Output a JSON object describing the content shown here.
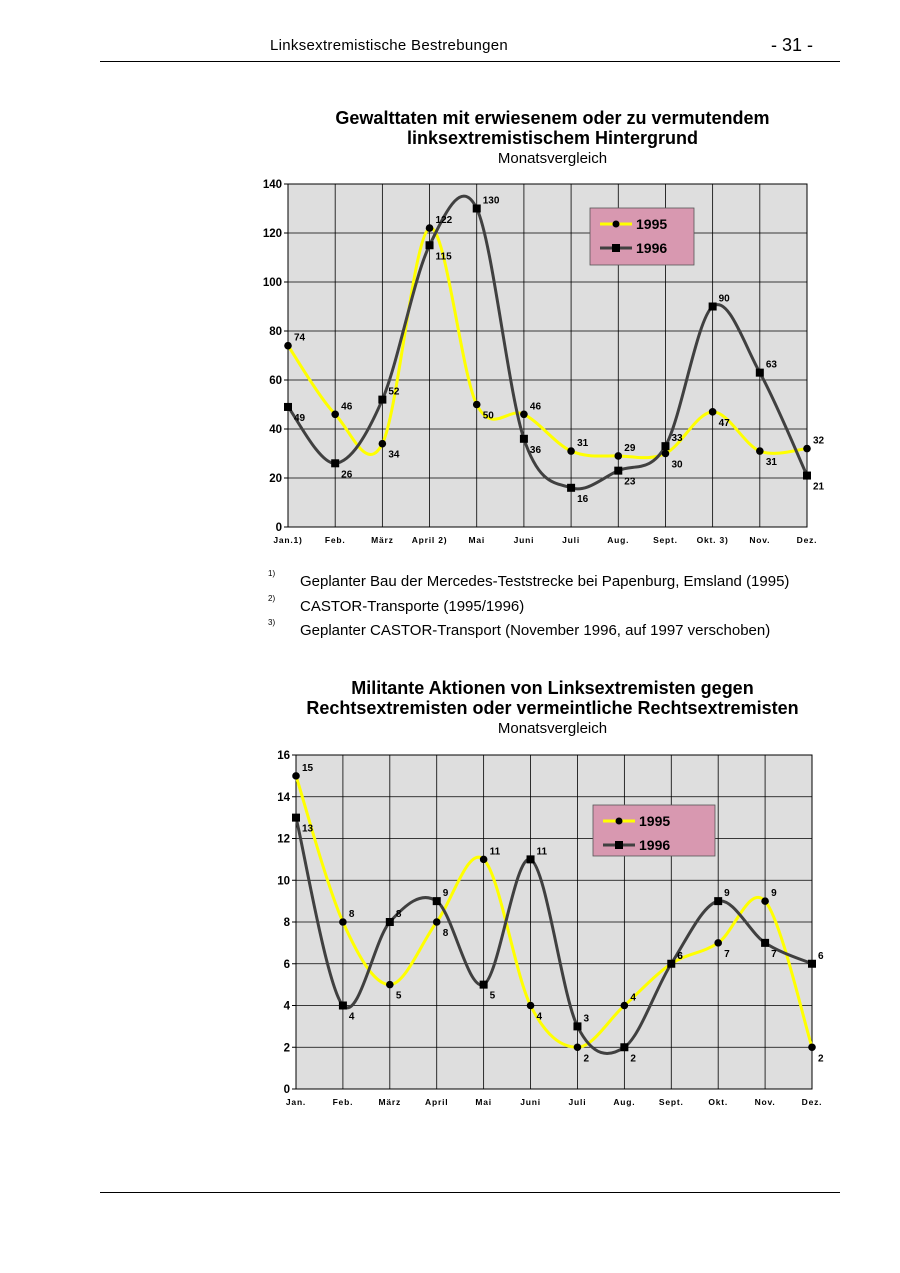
{
  "header": {
    "title": "Linksextremistische Bestrebungen",
    "page_number": "- 31 -"
  },
  "footnotes": [
    {
      "mark": "1)",
      "text": "Geplanter Bau der Mercedes-Teststrecke bei Papenburg, Emsland (1995)"
    },
    {
      "mark": "2)",
      "text": "CASTOR-Transporte (1995/1996)"
    },
    {
      "mark": "3)",
      "text": "Geplanter CASTOR-Transport (November 1996, auf 1997 verschoben)"
    }
  ],
  "colors": {
    "series_1995": "#ffff00",
    "series_1996": "#404040",
    "plot_bg": "#dedede",
    "legend_bg": "#d898b0"
  },
  "chart_data": [
    {
      "type": "line",
      "title_line1": "Gewalttaten mit erwiesenem oder zu vermutendem",
      "title_line2": "linksextremistischem Hintergrund",
      "subtitle": "Monatsvergleich",
      "categories": [
        "Jan.1)",
        "Feb.",
        "März",
        "April 2)",
        "Mai",
        "Juni",
        "Juli",
        "Aug.",
        "Sept.",
        "Okt. 3)",
        "Nov.",
        "Dez."
      ],
      "ylim": [
        0,
        140
      ],
      "yticks": [
        "0",
        "20",
        "40",
        "60",
        "80",
        "100",
        "120",
        "140"
      ],
      "legend_placement": "top-right",
      "grid": true,
      "series": [
        {
          "name": "1995",
          "values": [
            74,
            46,
            34,
            122,
            50,
            46,
            31,
            29,
            30,
            47,
            31,
            32
          ],
          "marker": "circle"
        },
        {
          "name": "1996",
          "values": [
            49,
            26,
            52,
            115,
            130,
            36,
            16,
            23,
            33,
            90,
            63,
            21
          ],
          "marker": "square"
        }
      ]
    },
    {
      "type": "line",
      "title_line1": "Militante Aktionen von Linksextremisten gegen",
      "title_line2": "Rechtsextremisten oder vermeintliche Rechtsextremisten",
      "subtitle": "Monatsvergleich",
      "categories": [
        "Jan.",
        "Feb.",
        "März",
        "April",
        "Mai",
        "Juni",
        "Juli",
        "Aug.",
        "Sept.",
        "Okt.",
        "Nov.",
        "Dez."
      ],
      "ylim": [
        0,
        16
      ],
      "yticks": [
        "0",
        "2",
        "4",
        "6",
        "8",
        "10",
        "12",
        "14",
        "16"
      ],
      "legend_placement": "top-right",
      "grid": true,
      "series": [
        {
          "name": "1995",
          "values": [
            15,
            8,
            5,
            8,
            11,
            4,
            2,
            4,
            6,
            7,
            9,
            2
          ],
          "marker": "circle"
        },
        {
          "name": "1996",
          "values": [
            13,
            4,
            8,
            9,
            5,
            11,
            3,
            2,
            6,
            9,
            7,
            6
          ],
          "marker": "square"
        }
      ]
    }
  ]
}
